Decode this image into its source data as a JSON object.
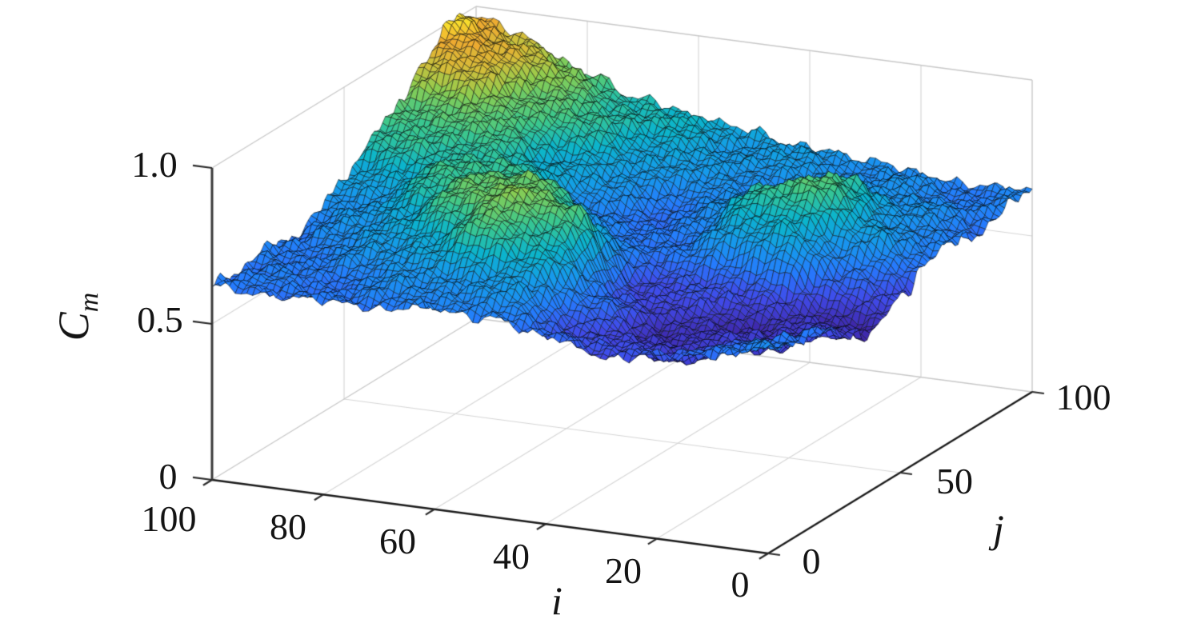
{
  "figure": {
    "kind": "3d-surface-plot",
    "background": "#ffffff"
  },
  "chart_data": {
    "type": "surface",
    "title": "",
    "x_axis": {
      "label": "i",
      "range": [
        0,
        100
      ],
      "ticks": [
        "100",
        "80",
        "60",
        "40",
        "20",
        "0"
      ],
      "tick_values": [
        100,
        80,
        60,
        40,
        20,
        0
      ]
    },
    "y_axis": {
      "label": "j",
      "range": [
        0,
        100
      ],
      "ticks": [
        "0",
        "50",
        "100"
      ],
      "tick_values": [
        0,
        50,
        100
      ]
    },
    "z_axis": {
      "label": "C",
      "label_subscript": "m",
      "range": [
        0,
        1
      ],
      "ticks": [
        "0",
        "0.5",
        "1.0"
      ],
      "tick_values": [
        0,
        0.5,
        1.0
      ]
    },
    "grid_on": true,
    "surface_value_range": [
      0.5,
      1.0
    ],
    "mesh_divisions": 96,
    "z_grid_estimated": {
      "comment_free": "rows are i = 0,10,...,100 (front to back-left); cols are j = 0,10,...,100",
      "i_values": [
        0,
        10,
        20,
        30,
        40,
        50,
        60,
        70,
        80,
        90,
        100
      ],
      "j_values": [
        0,
        10,
        20,
        30,
        40,
        50,
        60,
        70,
        80,
        90,
        100
      ],
      "z": [
        [
          0.66,
          0.63,
          0.6,
          0.55,
          0.5,
          0.56,
          0.63,
          0.63,
          0.62,
          0.64,
          0.65
        ],
        [
          0.62,
          0.58,
          0.55,
          0.52,
          0.52,
          0.62,
          0.7,
          0.69,
          0.66,
          0.64,
          0.63
        ],
        [
          0.58,
          0.54,
          0.52,
          0.52,
          0.56,
          0.74,
          0.84,
          0.78,
          0.7,
          0.66,
          0.65
        ],
        [
          0.57,
          0.54,
          0.53,
          0.53,
          0.58,
          0.72,
          0.78,
          0.72,
          0.68,
          0.67,
          0.67
        ],
        [
          0.6,
          0.58,
          0.6,
          0.58,
          0.56,
          0.62,
          0.66,
          0.66,
          0.67,
          0.68,
          0.69
        ],
        [
          0.64,
          0.68,
          0.78,
          0.82,
          0.72,
          0.62,
          0.6,
          0.63,
          0.67,
          0.7,
          0.71
        ],
        [
          0.64,
          0.69,
          0.82,
          0.88,
          0.84,
          0.72,
          0.65,
          0.67,
          0.72,
          0.74,
          0.74
        ],
        [
          0.63,
          0.66,
          0.74,
          0.82,
          0.84,
          0.8,
          0.74,
          0.74,
          0.78,
          0.79,
          0.77
        ],
        [
          0.62,
          0.63,
          0.67,
          0.73,
          0.78,
          0.8,
          0.8,
          0.81,
          0.85,
          0.86,
          0.83
        ],
        [
          0.62,
          0.62,
          0.64,
          0.66,
          0.69,
          0.73,
          0.79,
          0.85,
          0.92,
          0.95,
          0.91
        ],
        [
          0.63,
          0.62,
          0.63,
          0.62,
          0.65,
          0.7,
          0.79,
          0.82,
          0.93,
          1.0,
          0.97
        ]
      ]
    },
    "ripple": {
      "terms": [
        {
          "amp": 0.016,
          "fi": 0.3,
          "fj": 0.26,
          "pi": 2.2,
          "pj": 1.0,
          "mode": "prod"
        },
        {
          "amp": 0.013,
          "fi": 0.9,
          "fj": 0.75,
          "pi": 1.7,
          "pj": 0.4,
          "mode": "prod"
        },
        {
          "amp": 0.009,
          "fi": 1.6,
          "fj": 1.1,
          "pi": 2.0,
          "pj": 0.0,
          "mode": "sum"
        },
        {
          "amp": 0.007,
          "fi": 0.45,
          "fj": -1.4,
          "pi": 5.0,
          "pj": 0.0,
          "mode": "sum"
        }
      ],
      "clamp": [
        0.49,
        1.01
      ]
    },
    "colormap": {
      "name": "parula-like",
      "stops": [
        [
          0.0,
          62,
          38,
          168
        ],
        [
          0.125,
          64,
          74,
          233
        ],
        [
          0.25,
          37,
          123,
          253
        ],
        [
          0.375,
          22,
          153,
          236
        ],
        [
          0.5,
          11,
          180,
          204
        ],
        [
          0.625,
          60,
          200,
          140
        ],
        [
          0.75,
          140,
          205,
          80
        ],
        [
          0.85,
          210,
          190,
          58
        ],
        [
          0.93,
          238,
          170,
          48
        ],
        [
          1.0,
          248,
          220,
          45
        ]
      ],
      "edge_color": "rgba(8,10,8,0.92)"
    },
    "projection": {
      "origin": [
        960,
        692
      ],
      "i_vec": [
        -6.95,
        -0.92
      ],
      "j_vec": [
        3.3,
        -2.02
      ],
      "z_vec": [
        0,
        -390
      ]
    },
    "style": {
      "grid_color": "#d6d6d6",
      "box_color": "#c8c8c8",
      "axis_color": "#1a1a1a",
      "z_axis_color": "#3a3a3a",
      "tick_color": "#2a2a2a"
    }
  }
}
